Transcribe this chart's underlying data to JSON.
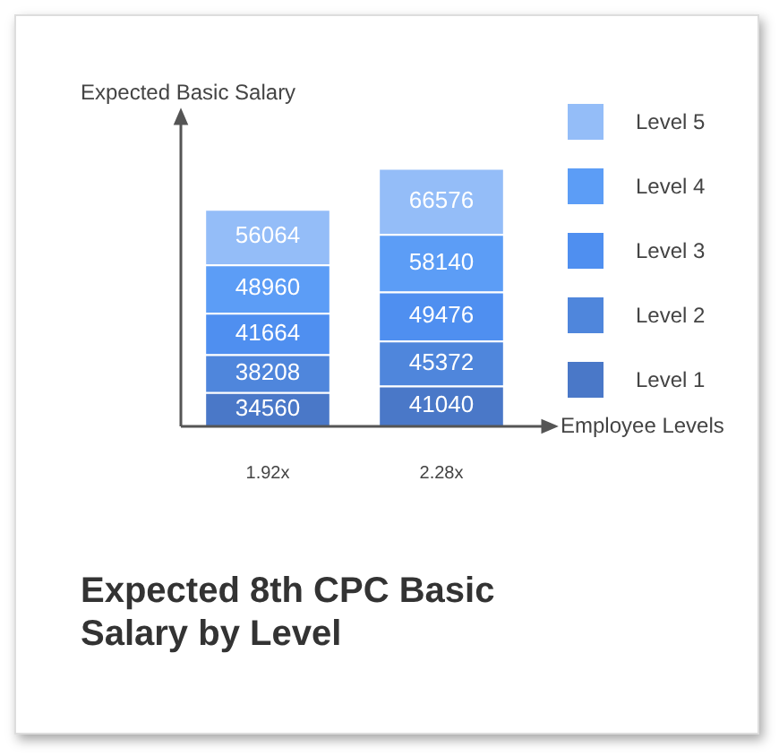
{
  "chart_data": {
    "type": "bar",
    "title": "Expected 8th CPC Basic Salary by Level",
    "xlabel": "Employee Levels",
    "ylabel": "Expected Basic Salary",
    "categories": [
      "1.92x",
      "2.28x"
    ],
    "stacked": true,
    "data_labels": true,
    "legend": "right",
    "grid": false,
    "tick_labels": "x",
    "series": [
      {
        "name": "Level 1",
        "color": "#4a78c8",
        "values": [
          34560,
          41040
        ]
      },
      {
        "name": "Level 2",
        "color": "#4f86dc",
        "values": [
          38208,
          45372
        ]
      },
      {
        "name": "Level 3",
        "color": "#4f8ff0",
        "values": [
          41664,
          49476
        ]
      },
      {
        "name": "Level 4",
        "color": "#5c9df6",
        "values": [
          48960,
          58140
        ]
      },
      {
        "name": "Level 5",
        "color": "#94bdf8",
        "values": [
          56064,
          66576
        ]
      }
    ]
  }
}
